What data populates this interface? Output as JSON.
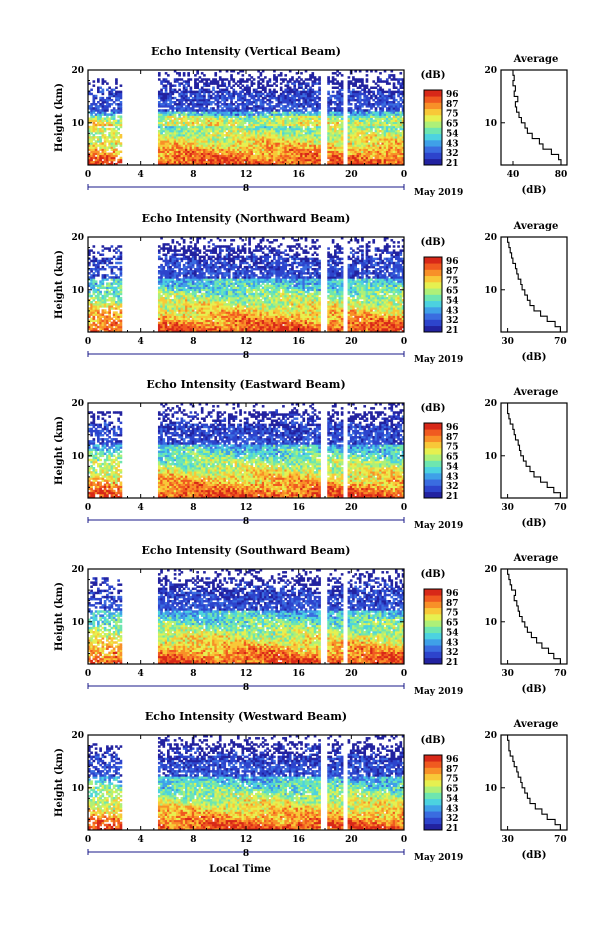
{
  "chart_data": [
    {
      "type": "heatmap",
      "title": "Echo Intensity (Vertical Beam)",
      "ylabel": "Height (km)",
      "x_ticks": [
        "0",
        "4",
        "8",
        "12",
        "16",
        "20",
        "0"
      ],
      "date_marker": "8",
      "date_label": "May 2019",
      "y_ticks": [
        "10",
        "20"
      ],
      "ylim": [
        2,
        20
      ],
      "colorbar_unit": "(dB)",
      "colorbar_ticks": [
        "96",
        "87",
        "75",
        "65",
        "54",
        "43",
        "32",
        "21"
      ],
      "gaps_hours": [
        [
          2.6,
          5.3
        ],
        [
          17.7,
          18.2
        ],
        [
          19.4,
          19.7
        ]
      ],
      "profile": {
        "title": "Average",
        "xlabel": "(dB)",
        "x_ticks": [
          "40",
          "80"
        ],
        "xlim": [
          30,
          85
        ],
        "y_ticks": [
          "10",
          "20"
        ],
        "heights_km": [
          2,
          3,
          4,
          5,
          6,
          7,
          8,
          9,
          10,
          11,
          12,
          13,
          14,
          15,
          16,
          17,
          18,
          19,
          20
        ],
        "values_db": [
          83,
          80,
          78,
          72,
          65,
          62,
          56,
          52,
          50,
          47,
          45,
          43,
          42,
          44,
          41,
          42,
          40,
          41,
          40
        ]
      }
    },
    {
      "type": "heatmap",
      "title": "Echo Intensity (Northward Beam)",
      "ylabel": "Height (km)",
      "x_ticks": [
        "0",
        "4",
        "8",
        "12",
        "16",
        "20",
        "0"
      ],
      "date_marker": "8",
      "date_label": "May 2019",
      "y_ticks": [
        "10",
        "20"
      ],
      "ylim": [
        2,
        20
      ],
      "colorbar_unit": "(dB)",
      "colorbar_ticks": [
        "96",
        "87",
        "75",
        "65",
        "54",
        "43",
        "32",
        "21"
      ],
      "gaps_hours": [
        [
          2.6,
          5.3
        ],
        [
          17.7,
          18.2
        ],
        [
          19.4,
          19.7
        ]
      ],
      "profile": {
        "title": "Average",
        "xlabel": "(dB)",
        "x_ticks": [
          "30",
          "70"
        ],
        "xlim": [
          25,
          75
        ],
        "y_ticks": [
          "10",
          "20"
        ],
        "heights_km": [
          2,
          3,
          4,
          5,
          6,
          7,
          8,
          9,
          10,
          11,
          12,
          13,
          14,
          15,
          16,
          17,
          18,
          19,
          20
        ],
        "values_db": [
          72,
          70,
          66,
          60,
          55,
          50,
          47,
          45,
          43,
          41,
          40,
          38,
          37,
          36,
          34,
          33,
          32,
          31,
          30
        ]
      }
    },
    {
      "type": "heatmap",
      "title": "Echo Intensity (Eastward Beam)",
      "ylabel": "Height (km)",
      "x_ticks": [
        "0",
        "4",
        "8",
        "12",
        "16",
        "20",
        "0"
      ],
      "date_marker": "8",
      "date_label": "May 2019",
      "y_ticks": [
        "10",
        "20"
      ],
      "ylim": [
        2,
        20
      ],
      "colorbar_unit": "(dB)",
      "colorbar_ticks": [
        "96",
        "87",
        "75",
        "65",
        "54",
        "43",
        "32",
        "21"
      ],
      "gaps_hours": [
        [
          2.6,
          5.3
        ],
        [
          17.7,
          18.2
        ],
        [
          19.4,
          19.7
        ]
      ],
      "profile": {
        "title": "Average",
        "xlabel": "(dB)",
        "x_ticks": [
          "30",
          "70"
        ],
        "xlim": [
          25,
          75
        ],
        "y_ticks": [
          "10",
          "20"
        ],
        "heights_km": [
          2,
          3,
          4,
          5,
          6,
          7,
          8,
          9,
          10,
          11,
          12,
          13,
          14,
          15,
          16,
          17,
          18,
          19,
          20
        ],
        "values_db": [
          73,
          70,
          65,
          60,
          55,
          50,
          47,
          44,
          42,
          40,
          39,
          38,
          36,
          35,
          34,
          32,
          31,
          30,
          30
        ]
      }
    },
    {
      "type": "heatmap",
      "title": "Echo Intensity (Southward Beam)",
      "ylabel": "Height (km)",
      "x_ticks": [
        "0",
        "4",
        "8",
        "12",
        "16",
        "20",
        "0"
      ],
      "date_marker": "8",
      "date_label": "May 2019",
      "y_ticks": [
        "10",
        "20"
      ],
      "ylim": [
        2,
        20
      ],
      "colorbar_unit": "(dB)",
      "colorbar_ticks": [
        "96",
        "87",
        "75",
        "65",
        "54",
        "43",
        "32",
        "21"
      ],
      "gaps_hours": [
        [
          2.6,
          5.3
        ],
        [
          17.7,
          18.2
        ],
        [
          19.4,
          19.7
        ]
      ],
      "profile": {
        "title": "Average",
        "xlabel": "(dB)",
        "x_ticks": [
          "30",
          "70"
        ],
        "xlim": [
          25,
          75
        ],
        "y_ticks": [
          "10",
          "20"
        ],
        "heights_km": [
          2,
          3,
          4,
          5,
          6,
          7,
          8,
          9,
          10,
          11,
          12,
          13,
          14,
          15,
          16,
          17,
          18,
          19,
          20
        ],
        "values_db": [
          72,
          70,
          65,
          61,
          56,
          52,
          48,
          45,
          43,
          41,
          39,
          38,
          37,
          35,
          36,
          33,
          32,
          31,
          30
        ]
      }
    },
    {
      "type": "heatmap",
      "title": "Echo Intensity (Westward Beam)",
      "ylabel": "Height (km)",
      "xlabel": "Local Time",
      "x_ticks": [
        "0",
        "4",
        "8",
        "12",
        "16",
        "20",
        "0"
      ],
      "date_marker": "8",
      "date_label": "May 2019",
      "y_ticks": [
        "10",
        "20"
      ],
      "ylim": [
        2,
        20
      ],
      "colorbar_unit": "(dB)",
      "colorbar_ticks": [
        "96",
        "87",
        "75",
        "65",
        "54",
        "43",
        "32",
        "21"
      ],
      "gaps_hours": [
        [
          2.6,
          5.3
        ],
        [
          17.7,
          18.2
        ],
        [
          19.4,
          19.7
        ]
      ],
      "profile": {
        "title": "Average",
        "xlabel": "(dB)",
        "x_ticks": [
          "30",
          "70"
        ],
        "xlim": [
          25,
          75
        ],
        "y_ticks": [
          "10",
          "20"
        ],
        "heights_km": [
          2,
          3,
          4,
          5,
          6,
          7,
          8,
          9,
          10,
          11,
          12,
          13,
          14,
          15,
          16,
          17,
          18,
          19,
          20
        ],
        "values_db": [
          72,
          70,
          66,
          60,
          56,
          51,
          47,
          45,
          43,
          41,
          40,
          38,
          37,
          35,
          34,
          32,
          31,
          31,
          30
        ]
      }
    }
  ],
  "colors": {
    "colormap": [
      "#2222a0",
      "#2d44cc",
      "#3a6ce0",
      "#3fa0e8",
      "#4cd2e0",
      "#6ee6b0",
      "#aef078",
      "#e6f050",
      "#f8c838",
      "#f89028",
      "#f05a20",
      "#d82818"
    ],
    "axis": "#000000",
    "date_axis": "#1a1a8a"
  }
}
